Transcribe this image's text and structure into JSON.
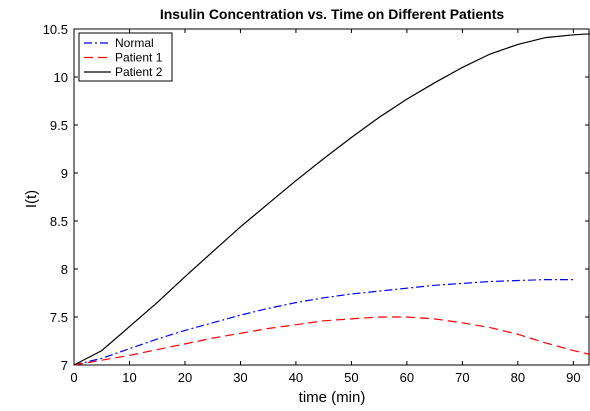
{
  "chart_data": {
    "type": "line",
    "title": "Insulin Concentration vs. Time on Different Patients",
    "xlabel": "time (min)",
    "ylabel": "I(t)",
    "xlim": [
      0,
      93
    ],
    "ylim": [
      7,
      10.5
    ],
    "x_ticks": [
      0,
      10,
      20,
      30,
      40,
      50,
      60,
      70,
      80,
      90
    ],
    "y_ticks": [
      7,
      7.5,
      8,
      8.5,
      9,
      9.5,
      10,
      10.5
    ],
    "grid": false,
    "legend": {
      "placement": "top-left",
      "entries": [
        "Normal",
        "Patient 1",
        "Patient 2"
      ]
    },
    "series": [
      {
        "name": "Normal",
        "color": "#0000ff",
        "line_style": "dash-dot",
        "x": [
          0,
          5,
          10,
          15,
          20,
          25,
          30,
          35,
          40,
          45,
          50,
          55,
          60,
          65,
          70,
          75,
          80,
          85,
          90
        ],
        "y": [
          7.0,
          7.07,
          7.17,
          7.27,
          7.36,
          7.44,
          7.52,
          7.59,
          7.65,
          7.7,
          7.74,
          7.77,
          7.8,
          7.83,
          7.85,
          7.87,
          7.88,
          7.89,
          7.89
        ]
      },
      {
        "name": "Patient 1",
        "color": "#ff0000",
        "line_style": "dashed",
        "x": [
          0,
          5,
          10,
          15,
          20,
          25,
          30,
          35,
          40,
          45,
          50,
          55,
          60,
          65,
          70,
          75,
          80,
          85,
          90,
          93
        ],
        "y": [
          7.0,
          7.05,
          7.1,
          7.16,
          7.22,
          7.28,
          7.33,
          7.38,
          7.42,
          7.46,
          7.48,
          7.5,
          7.5,
          7.48,
          7.44,
          7.39,
          7.32,
          7.23,
          7.15,
          7.11
        ]
      },
      {
        "name": "Patient 2",
        "color": "#000000",
        "line_style": "solid",
        "x": [
          0,
          5,
          10,
          15,
          20,
          25,
          30,
          35,
          40,
          45,
          50,
          55,
          60,
          65,
          70,
          75,
          80,
          85,
          90,
          93
        ],
        "y": [
          7.0,
          7.15,
          7.4,
          7.65,
          7.92,
          8.18,
          8.44,
          8.68,
          8.92,
          9.15,
          9.37,
          9.58,
          9.77,
          9.94,
          10.1,
          10.24,
          10.34,
          10.41,
          10.44,
          10.45
        ]
      }
    ]
  }
}
